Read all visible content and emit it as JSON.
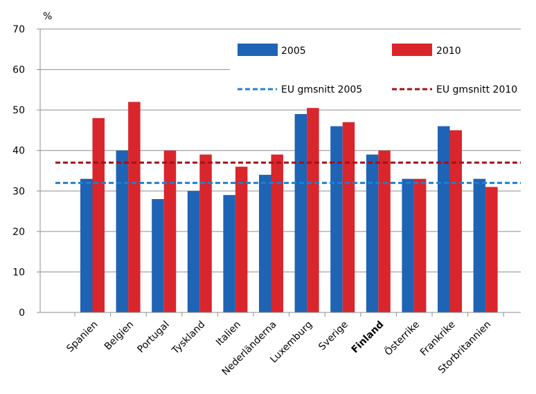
{
  "chart_data": {
    "type": "bar",
    "ylabel": "%",
    "ylim": [
      0,
      70
    ],
    "yticks": [
      0,
      10,
      20,
      30,
      40,
      50,
      60,
      70
    ],
    "grid": true,
    "legend_placement": "top-right",
    "categories": [
      "Spanien",
      "Belgien",
      "Portugal",
      "Tyskland",
      "Italien",
      "Nederländerna",
      "Luxemburg",
      "Sverige",
      "Finland",
      "Österrike",
      "Frankrike",
      "Storbritannien"
    ],
    "highlighted_category": "Finland",
    "series": [
      {
        "name": "2005",
        "color": "#1f63b5",
        "values": [
          33,
          40,
          28,
          30,
          29,
          34,
          49,
          46,
          39,
          33,
          46,
          33
        ]
      },
      {
        "name": "2010",
        "color": "#d9262c",
        "values": [
          48,
          52,
          40,
          39,
          36,
          39,
          50.5,
          47,
          40,
          33,
          45,
          31
        ]
      }
    ],
    "reference_lines": [
      {
        "name": "EU gmsnitt 2005",
        "value": 32,
        "color": "#1f7fd0",
        "style": "dashed"
      },
      {
        "name": "EU gmsnitt 2010",
        "value": 37,
        "color": "#a60d16",
        "style": "dashed"
      }
    ]
  }
}
